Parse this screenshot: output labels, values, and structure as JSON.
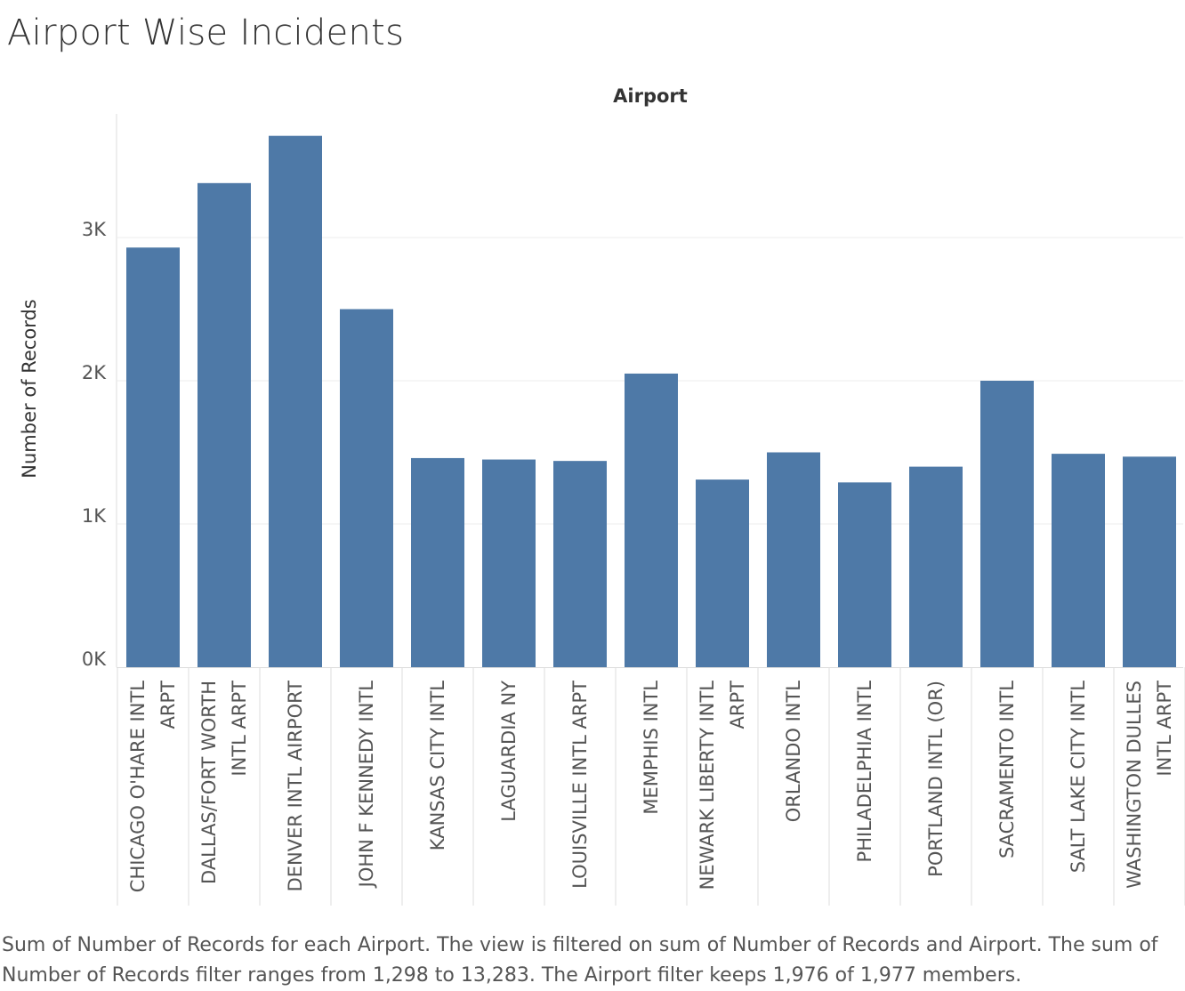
{
  "title": "Airport Wise Incidents",
  "caption": "Sum of Number of Records for each Airport. The view is filtered on sum of Number of Records and Airport. The sum of Number of Records filter ranges from 1,298 to 13,283. The Airport filter keeps 1,976 of 1,977 members.",
  "colors": {
    "bar": "#4e79a7",
    "grid": "#ececec",
    "axis": "#dcdcdc",
    "tick_text": "#555555",
    "label_text": "#333333"
  },
  "chart_data": {
    "type": "bar",
    "title": "Airport",
    "xlabel": "",
    "ylabel": "Number of Records",
    "ylim": [
      0,
      3800
    ],
    "yticks": [
      0,
      1000,
      2000,
      3000
    ],
    "ytick_labels": [
      "0K",
      "1K",
      "2K",
      "3K"
    ],
    "grid": true,
    "categories": [
      [
        "CHICAGO O'HARE INTL",
        "ARPT"
      ],
      [
        "DALLAS/FORT WORTH",
        "INTL ARPT"
      ],
      [
        "DENVER INTL AIRPORT"
      ],
      [
        "JOHN F KENNEDY INTL"
      ],
      [
        "KANSAS CITY INTL"
      ],
      [
        "LAGUARDIA NY"
      ],
      [
        "LOUISVILLE INTL ARPT"
      ],
      [
        "MEMPHIS INTL"
      ],
      [
        "NEWARK LIBERTY INTL",
        "ARPT"
      ],
      [
        "ORLANDO INTL"
      ],
      [
        "PHILADELPHIA INTL"
      ],
      [
        "PORTLAND INTL (OR)"
      ],
      [
        "SACRAMENTO INTL"
      ],
      [
        "SALT LAKE CITY INTL"
      ],
      [
        "WASHINGTON DULLES",
        "INTL ARPT"
      ]
    ],
    "values": [
      2930,
      3380,
      3710,
      2500,
      1460,
      1450,
      1440,
      2050,
      1310,
      1500,
      1290,
      1400,
      2000,
      1490,
      1470
    ]
  }
}
